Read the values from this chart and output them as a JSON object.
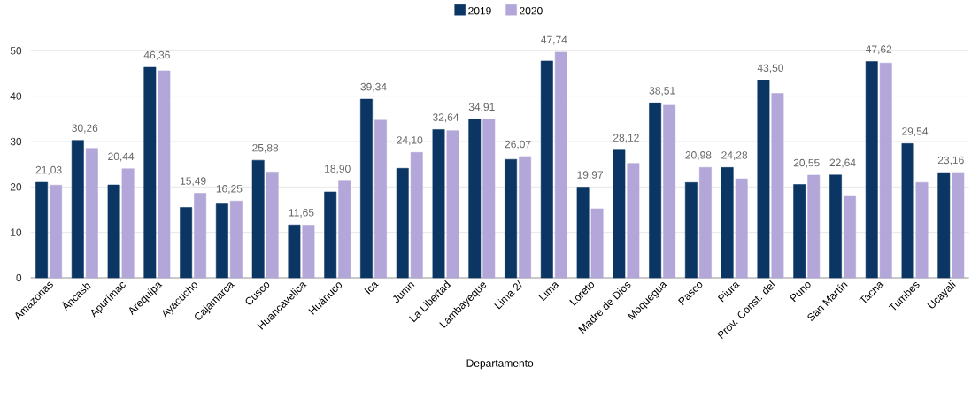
{
  "chart_data": {
    "type": "bar",
    "xlabel": "Departamento",
    "categories": [
      "Amazonas",
      "Áncash",
      "Apurímac",
      "Arequipa",
      "Ayacucho",
      "Cajamarca",
      "Cusco",
      "Huancavelica",
      "Huánuco",
      "Ica",
      "Junín",
      "La Libertad",
      "Lambayeque",
      "Lima 2/",
      "Lima",
      "Loreto",
      "Madre de Dios",
      "Moquegua",
      "Pasco",
      "Piura",
      "Prov. Const. del",
      "Puno",
      "San Martín",
      "Tacna",
      "Tumbes",
      "Ucayali"
    ],
    "series": [
      {
        "name": "2019",
        "color": "#0b3563",
        "values": [
          21.03,
          30.26,
          20.44,
          46.36,
          15.49,
          16.25,
          25.88,
          11.65,
          18.9,
          39.34,
          24.1,
          32.64,
          34.91,
          26.07,
          47.74,
          19.97,
          28.12,
          38.51,
          20.98,
          24.28,
          43.5,
          20.55,
          22.64,
          47.62,
          29.54,
          23.16
        ],
        "value_labels": [
          "21,03",
          "30,26",
          "20,44",
          "46,36",
          "15,49",
          "16,25",
          "25,88",
          "11,65",
          "18,90",
          "39,34",
          "24,10",
          "32,64",
          "34,91",
          "26,07",
          "47,74",
          "19,97",
          "28,12",
          "38,51",
          "20,98",
          "24,28",
          "43,50",
          "20,55",
          "22,64",
          "47,62",
          "29,54",
          "23,16"
        ]
      },
      {
        "name": "2020",
        "color": "#b3a6d8",
        "values": [
          20.4,
          28.5,
          24.0,
          45.6,
          18.6,
          16.9,
          23.3,
          11.6,
          21.3,
          34.7,
          27.6,
          32.4,
          34.9,
          26.7,
          49.7,
          15.2,
          25.2,
          38.0,
          24.3,
          21.8,
          40.6,
          22.6,
          18.1,
          47.3,
          21.0,
          23.2
        ]
      }
    ],
    "ylim": [
      0,
      50
    ],
    "yticks": [
      0,
      10,
      20,
      30,
      40,
      50
    ],
    "grid": "y",
    "legend": "top"
  }
}
